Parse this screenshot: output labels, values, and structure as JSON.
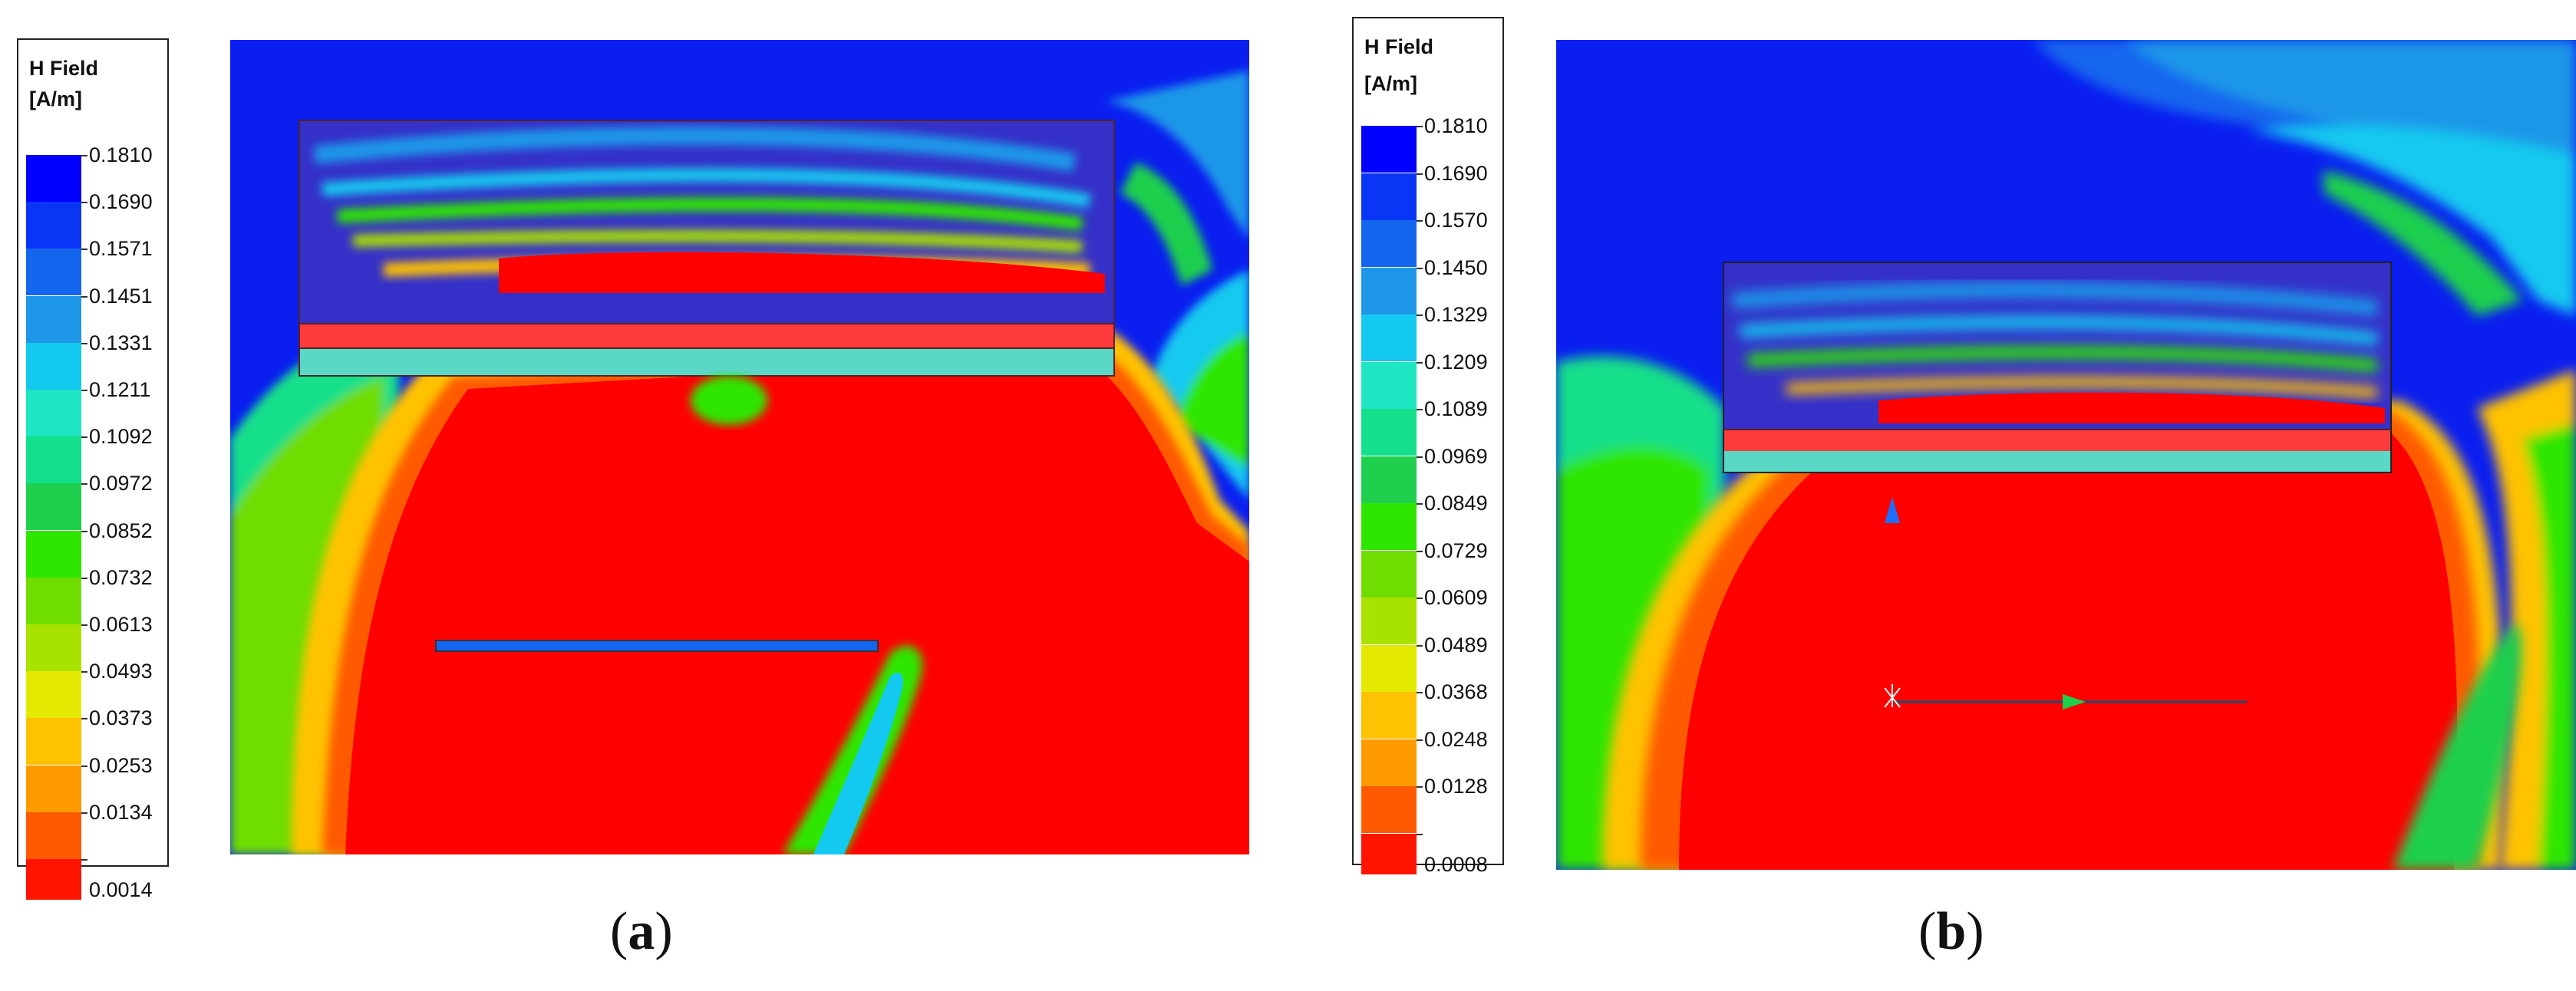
{
  "colors": {
    "scale": [
      "#0000ff",
      "#0a35f5",
      "#1466ee",
      "#1f97e8",
      "#14c9ef",
      "#1ee6c3",
      "#14df8a",
      "#1fd04e",
      "#2fe600",
      "#70dd00",
      "#a8e300",
      "#e3ea00",
      "#ffc200",
      "#ff9a00",
      "#ff5a00",
      "#ff1400"
    ],
    "background_low": "#0a1ef0",
    "background_high": "#ff0000"
  },
  "panels": [
    {
      "id": "a",
      "legend_title": "H Field",
      "legend_unit": "[A/m]",
      "legend_values": [
        "0.1810",
        "0.1690",
        "0.1571",
        "0.1451",
        "0.1331",
        "0.1211",
        "0.1092",
        "0.0972",
        "0.0852",
        "0.0732",
        "0.0613",
        "0.0493",
        "0.0373",
        "0.0253",
        "0.0134",
        "0.0014"
      ],
      "caption_open": "(",
      "caption_letter": "a",
      "caption_close": ")"
    },
    {
      "id": "b",
      "legend_title": "H Field",
      "legend_unit": "[A/m]",
      "legend_values": [
        "0.1810",
        "0.1690",
        "0.1570",
        "0.1450",
        "0.1329",
        "0.1209",
        "0.1089",
        "0.0969",
        "0.0849",
        "0.0729",
        "0.0609",
        "0.0489",
        "0.0368",
        "0.0248",
        "0.0128",
        "0.0008"
      ],
      "caption_open": "(",
      "caption_letter": "b",
      "caption_close": ")"
    }
  ]
}
